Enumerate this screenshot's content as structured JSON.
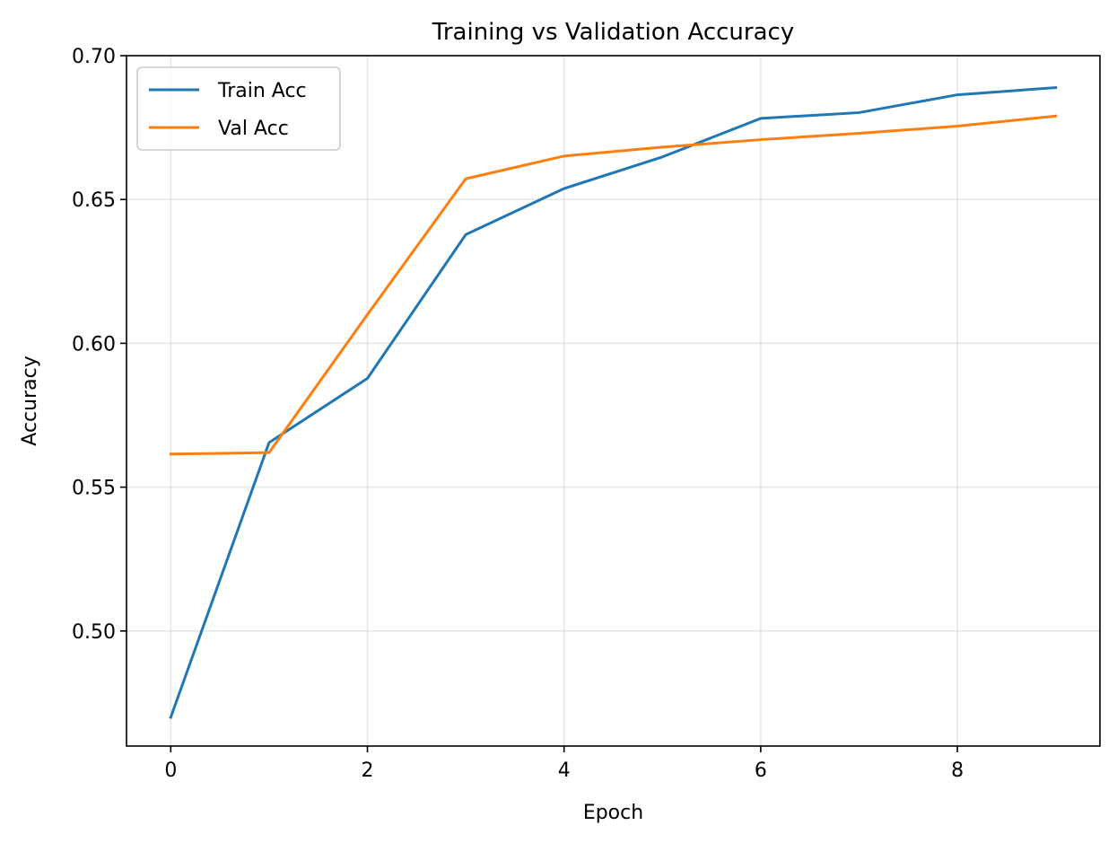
{
  "chart_data": {
    "type": "line",
    "title": "Training vs Validation Accuracy",
    "xlabel": "Epoch",
    "ylabel": "Accuracy",
    "x": [
      0,
      1,
      2,
      3,
      4,
      5,
      6,
      7,
      8,
      9
    ],
    "xlim": [
      -0.45,
      9.45
    ],
    "ylim": [
      0.46,
      0.7
    ],
    "xticks": [
      0,
      2,
      4,
      6,
      8
    ],
    "xtick_labels": [
      "0",
      "2",
      "4",
      "6",
      "8"
    ],
    "yticks": [
      0.5,
      0.55,
      0.6,
      0.65,
      0.7
    ],
    "ytick_labels": [
      "0.50",
      "0.55",
      "0.60",
      "0.65",
      "0.70"
    ],
    "grid": true,
    "legend_position": "top-left",
    "series": [
      {
        "name": "Train Acc",
        "color": "#1f77b4",
        "values": [
          0.47,
          0.5655,
          0.5878,
          0.6378,
          0.6538,
          0.6648,
          0.6782,
          0.6802,
          0.6864,
          0.6889
        ]
      },
      {
        "name": "Val Acc",
        "color": "#ff7f0e",
        "values": [
          0.5615,
          0.562,
          0.61,
          0.6572,
          0.6651,
          0.6682,
          0.6708,
          0.673,
          0.6755,
          0.679
        ]
      }
    ]
  }
}
